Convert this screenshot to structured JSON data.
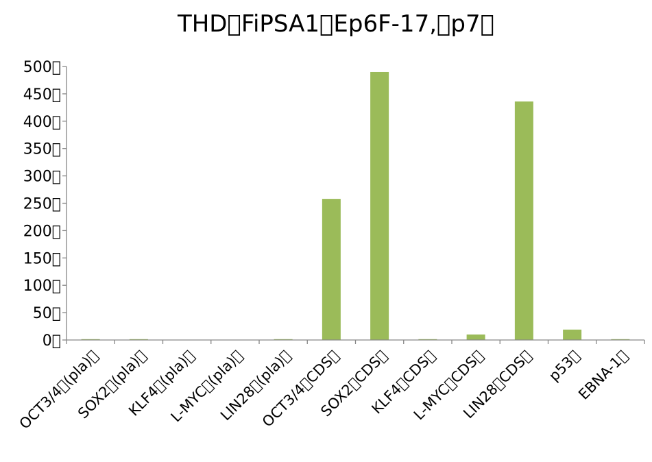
{
  "chart_data": {
    "type": "bar",
    "title": "THD\u0000FiPSA1\u0000Ep6F-17,\u0000p7\u0000",
    "xlabel": "",
    "ylabel": "",
    "ylim": [
      0,
      500
    ],
    "yticks": [
      0,
      50,
      100,
      150,
      200,
      250,
      300,
      350,
      400,
      450,
      500
    ],
    "ytick_suffix": "\u0000",
    "grid": false,
    "legend": "none",
    "bar_color": "#9bbb59",
    "categories": [
      "OCT3/4\u0000(pla)\u0000",
      "SOX2\u0000(pla)\u0000",
      "KLF4\u0000(pla)\u0000",
      "L-MYC\u0000(pla)\u0000",
      "LIN28\u0000(pla)\u0000",
      "OCT3/4\u0000CDS\u0000",
      "SOX2\u0000CDS\u0000",
      "KLF4\u0000CDS\u0000",
      "L-MYC\u0000CDS\u0000",
      "LIN28\u0000CDS\u0000",
      "p53\u0000",
      "EBNA-1\u0000"
    ],
    "values": [
      1.5,
      1.5,
      0.5,
      0.5,
      1.5,
      258,
      490,
      1.5,
      10,
      436,
      19,
      1.5
    ]
  }
}
